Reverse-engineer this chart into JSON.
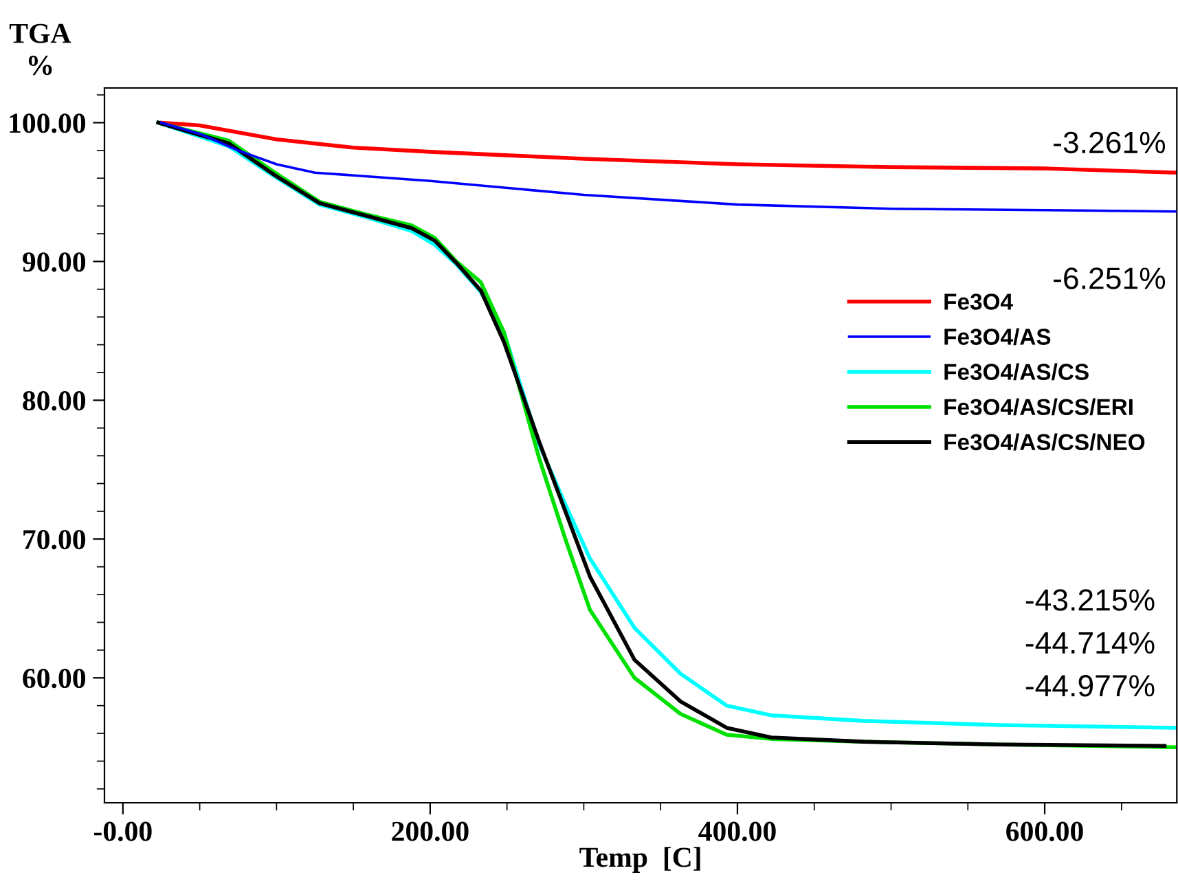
{
  "chart_data": {
    "type": "line",
    "ylabel": "TGA\n%",
    "xlabel": "Temp  [C]",
    "xlim": [
      -12,
      686
    ],
    "ylim": [
      51,
      102.5
    ],
    "xticks": [
      {
        "value": 0,
        "label": "-0.00"
      },
      {
        "value": 200,
        "label": "200.00"
      },
      {
        "value": 400,
        "label": "400.00"
      },
      {
        "value": 600,
        "label": "600.00"
      }
    ],
    "yticks": [
      {
        "value": 60,
        "label": "60.00"
      },
      {
        "value": 70,
        "label": "70.00"
      },
      {
        "value": 80,
        "label": "80.00"
      },
      {
        "value": 90,
        "label": "90.00"
      },
      {
        "value": 100,
        "label": "100.00"
      }
    ],
    "grid": false,
    "legend": "right",
    "marker": "none",
    "line_style": "solid",
    "annotations": [
      "-3.261%",
      "-6.251%",
      "-43.215%",
      "-44.714%",
      "-44.977%"
    ],
    "series": [
      {
        "name": "Fe3O4",
        "color": "#ff0000",
        "x": [
          25,
          50,
          100,
          150,
          200,
          300,
          400,
          500,
          600,
          685
        ],
        "values": [
          100,
          99.8,
          98.8,
          98.2,
          97.9,
          97.4,
          97.0,
          96.8,
          96.7,
          96.4
        ]
      },
      {
        "name": "Fe3O4/AS",
        "color": "#0000ff",
        "x": [
          25,
          50,
          75,
          100,
          125,
          200,
          300,
          400,
          500,
          600,
          685
        ],
        "values": [
          100,
          99.2,
          98.0,
          97.0,
          96.4,
          95.8,
          94.8,
          94.1,
          93.8,
          93.7,
          93.6
        ]
      },
      {
        "name": "Fe3O4/AS/CS",
        "color": "#00ffff",
        "x": [
          23,
          69,
          99,
          128,
          158,
          188,
          203,
          217,
          233,
          248,
          271,
          288,
          304,
          333,
          363,
          393,
          422,
          482,
          571,
          685
        ],
        "values": [
          100,
          98.3,
          96.1,
          94.1,
          93.2,
          92.2,
          91.2,
          89.8,
          87.8,
          84.9,
          76.8,
          72.5,
          68.6,
          63.6,
          60.3,
          58.0,
          57.3,
          56.9,
          56.6,
          56.4
        ]
      },
      {
        "name": "Fe3O4/AS/CS/ERI",
        "color": "#00e000",
        "x": [
          23,
          69,
          99,
          128,
          158,
          188,
          203,
          217,
          233,
          248,
          271,
          288,
          304,
          333,
          363,
          393,
          422,
          482,
          571,
          685
        ],
        "values": [
          100,
          98.7,
          96.4,
          94.3,
          93.4,
          92.6,
          91.7,
          90.0,
          88.5,
          84.9,
          75.8,
          70.0,
          64.9,
          60.0,
          57.4,
          55.9,
          55.6,
          55.4,
          55.2,
          55.0
        ]
      },
      {
        "name": "Fe3O4/AS/CS/NEO",
        "color": "#000000",
        "x": [
          23,
          69,
          99,
          128,
          158,
          188,
          203,
          217,
          233,
          248,
          271,
          288,
          304,
          333,
          363,
          393,
          422,
          482,
          571,
          678
        ],
        "values": [
          100,
          98.5,
          96.2,
          94.2,
          93.3,
          92.4,
          91.5,
          89.9,
          87.9,
          84.2,
          77.0,
          72.0,
          67.3,
          61.3,
          58.3,
          56.4,
          55.7,
          55.4,
          55.2,
          55.1
        ]
      }
    ]
  }
}
